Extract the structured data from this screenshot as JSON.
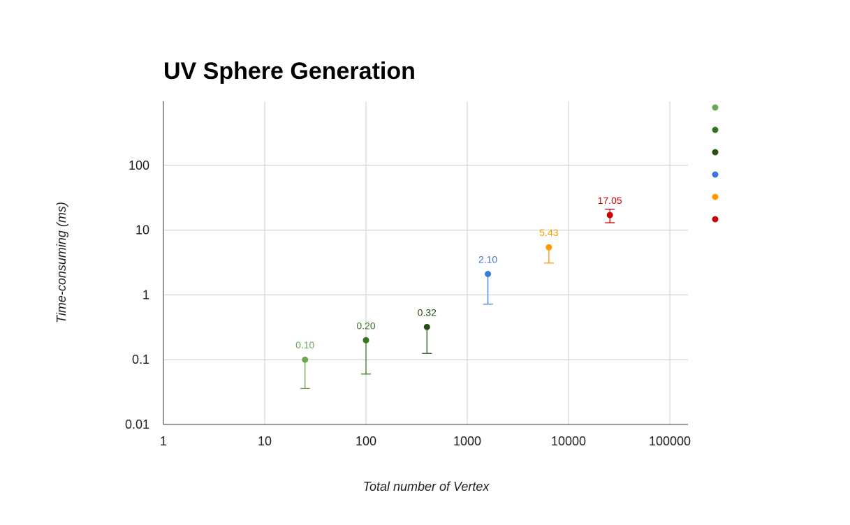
{
  "chart_data": {
    "type": "scatter",
    "title": "UV Sphere Generation",
    "xlabel": "Total number of Vertex",
    "ylabel": "Time-consuming (ms)",
    "x_scale": "log",
    "y_scale": "log",
    "xlim": [
      1,
      100000
    ],
    "ylim": [
      0.01,
      1000
    ],
    "x_ticks": [
      "1",
      "10",
      "100",
      "1000",
      "10000",
      "100000"
    ],
    "y_ticks": [
      "0.01",
      "0.1",
      "1",
      "10",
      "100"
    ],
    "grid": true,
    "legend_position": "right",
    "series": [
      {
        "x": 25,
        "y": 0.1,
        "label": "0.10",
        "error_low": 0.036,
        "error_high": 0.1,
        "color": "#6aa84f"
      },
      {
        "x": 100,
        "y": 0.2,
        "label": "0.20",
        "error_low": 0.06,
        "error_high": 0.2,
        "color": "#38761d"
      },
      {
        "x": 400,
        "y": 0.32,
        "label": "0.32",
        "error_low": 0.125,
        "error_high": 0.32,
        "color": "#274e13"
      },
      {
        "x": 1600,
        "y": 2.1,
        "label": "2.10",
        "error_low": 0.72,
        "error_high": 2.1,
        "color": "#3c78d8"
      },
      {
        "x": 6400,
        "y": 5.43,
        "label": "5.43",
        "error_low": 3.1,
        "error_high": 5.43,
        "color": "#ff9900"
      },
      {
        "x": 25600,
        "y": 17.05,
        "label": "17.05",
        "error_low": 13.0,
        "error_high": 21.0,
        "color": "#cc0000"
      }
    ]
  }
}
